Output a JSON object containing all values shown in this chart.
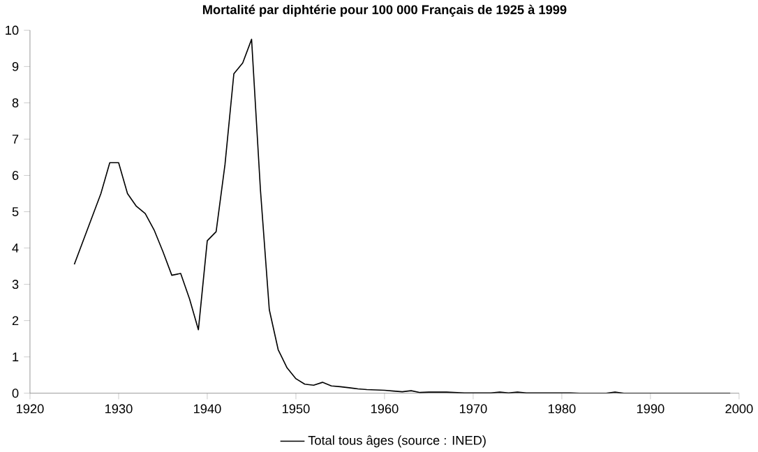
{
  "chart_data": {
    "type": "line",
    "title": "Mortalité par diphtérie pour 100 000 Français de 1925 à 1999",
    "x": [
      1925,
      1926,
      1927,
      1928,
      1929,
      1930,
      1931,
      1932,
      1933,
      1934,
      1935,
      1936,
      1937,
      1938,
      1939,
      1940,
      1941,
      1942,
      1943,
      1944,
      1945,
      1946,
      1947,
      1948,
      1949,
      1950,
      1951,
      1952,
      1953,
      1954,
      1955,
      1956,
      1957,
      1958,
      1959,
      1960,
      1961,
      1962,
      1963,
      1964,
      1965,
      1966,
      1967,
      1968,
      1969,
      1970,
      1971,
      1972,
      1973,
      1974,
      1975,
      1976,
      1977,
      1978,
      1979,
      1980,
      1981,
      1982,
      1983,
      1984,
      1985,
      1986,
      1987,
      1988,
      1989,
      1990,
      1991,
      1992,
      1993,
      1994,
      1995,
      1996,
      1997,
      1998,
      1999
    ],
    "series": [
      {
        "name": "Total tous âges (source : INED)",
        "color": "#000000",
        "values": [
          3.55,
          4.2,
          4.85,
          5.5,
          6.35,
          6.35,
          5.5,
          5.15,
          4.95,
          4.5,
          3.9,
          3.25,
          3.3,
          2.6,
          1.75,
          4.2,
          4.45,
          6.3,
          8.8,
          9.1,
          9.75,
          5.6,
          2.3,
          1.2,
          0.7,
          0.4,
          0.25,
          0.22,
          0.3,
          0.2,
          0.18,
          0.15,
          0.12,
          0.1,
          0.09,
          0.08,
          0.06,
          0.04,
          0.07,
          0.02,
          0.03,
          0.03,
          0.03,
          0.02,
          0.01,
          0.01,
          0.01,
          0.01,
          0.03,
          0.01,
          0.03,
          0.01,
          0.01,
          0.01,
          0.01,
          0.01,
          0.01,
          0,
          0,
          0,
          0,
          0.03,
          0,
          0,
          0,
          0,
          0,
          0,
          0,
          0,
          0,
          0,
          0,
          0,
          0
        ]
      }
    ],
    "xlim": [
      1920,
      2000
    ],
    "xticks": [
      1920,
      1930,
      1940,
      1950,
      1960,
      1970,
      1980,
      1990,
      2000
    ],
    "ylim": [
      0,
      10
    ],
    "yticks": [
      0,
      1,
      2,
      3,
      4,
      5,
      6,
      7,
      8,
      9,
      10
    ],
    "legend": "bottom",
    "grid": false,
    "marker": "none",
    "line_style": "solid"
  }
}
